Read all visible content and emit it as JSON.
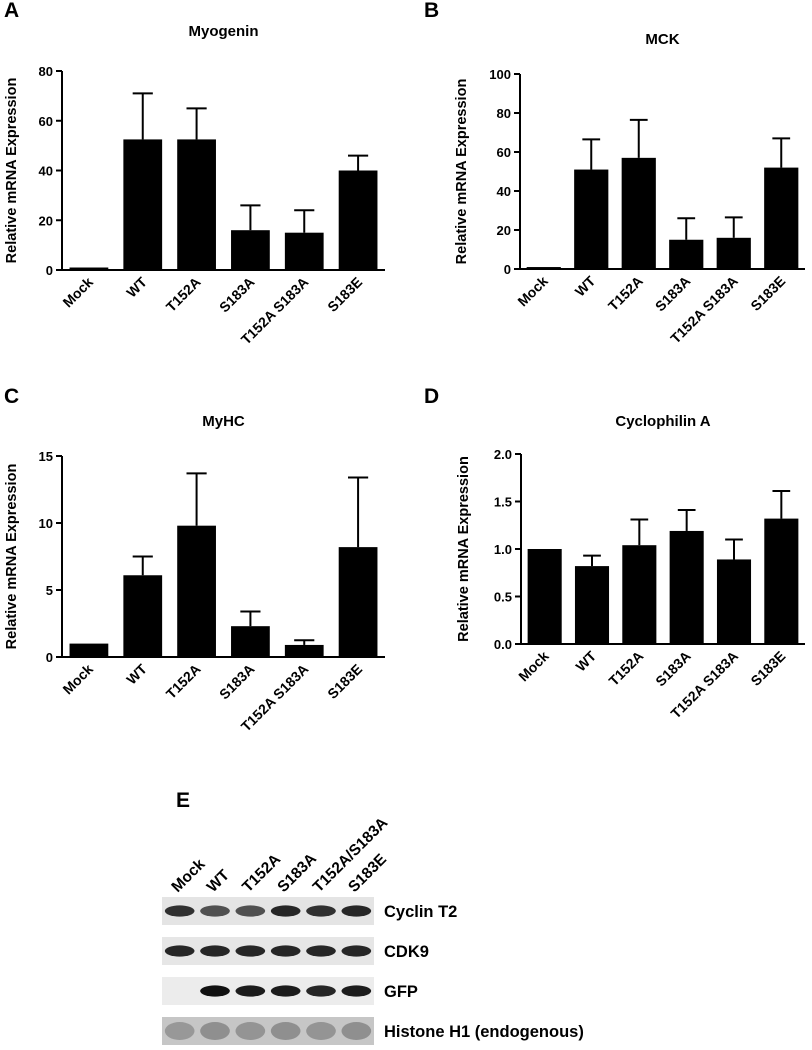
{
  "panel_labels": {
    "a": "A",
    "b": "B",
    "c": "C",
    "d": "D",
    "e": "E"
  },
  "chart_data": [
    {
      "panel": "A",
      "type": "bar",
      "title": "Myogenin",
      "ylabel": "Relative mRNA Expression",
      "xlabel": "",
      "categories": [
        "Mock",
        "WT",
        "T152A",
        "S183A",
        "T152A S183A",
        "S183E"
      ],
      "values": [
        1,
        52.5,
        52.5,
        16,
        15,
        40
      ],
      "errors": [
        0,
        18.5,
        12.5,
        10,
        9,
        6
      ],
      "ylim": [
        0,
        80
      ],
      "yticks": [
        "0",
        "20",
        "40",
        "60",
        "80"
      ],
      "grid": false
    },
    {
      "panel": "B",
      "type": "bar",
      "title": "MCK",
      "ylabel": "Relative mRNA Expression",
      "xlabel": "",
      "categories": [
        "Mock",
        "WT",
        "T152A",
        "S183A",
        "T152A S183A",
        "S183E"
      ],
      "values": [
        1,
        51,
        57,
        15,
        16,
        52
      ],
      "errors": [
        0,
        15.5,
        19.5,
        11,
        10.5,
        15
      ],
      "ylim": [
        0,
        100
      ],
      "yticks": [
        "0",
        "20",
        "40",
        "60",
        "80",
        "100"
      ],
      "grid": false
    },
    {
      "panel": "C",
      "type": "bar",
      "title": "MyHC",
      "ylabel": "Relative mRNA Expression",
      "xlabel": "",
      "categories": [
        "Mock",
        "WT",
        "T152A",
        "S183A",
        "T152A S183A",
        "S183E"
      ],
      "values": [
        1,
        6.1,
        9.8,
        2.3,
        0.9,
        8.2
      ],
      "errors": [
        0,
        1.4,
        3.9,
        1.1,
        0.35,
        5.2
      ],
      "ylim": [
        0,
        15
      ],
      "yticks": [
        "0",
        "5",
        "10",
        "15"
      ],
      "grid": false
    },
    {
      "panel": "D",
      "type": "bar",
      "title": "Cyclophilin A",
      "ylabel": "Relative mRNA Expression",
      "xlabel": "",
      "categories": [
        "Mock",
        "WT",
        "T152A",
        "S183A",
        "T152A S183A",
        "S183E"
      ],
      "values": [
        1.0,
        0.82,
        1.04,
        1.19,
        0.89,
        1.32
      ],
      "errors": [
        0,
        0.11,
        0.27,
        0.22,
        0.21,
        0.29
      ],
      "ylim": [
        0,
        2.0
      ],
      "yticks": [
        "0.0",
        "0.5",
        "1.0",
        "1.5",
        "2.0"
      ],
      "grid": false
    }
  ],
  "blot": {
    "lanes": [
      "Mock",
      "WT",
      "T152A",
      "S183A",
      "T152A/S183A",
      "S183E"
    ],
    "rows": [
      {
        "label": "Cyclin T2",
        "intensity": [
          0.85,
          0.7,
          0.7,
          0.9,
          0.85,
          0.9
        ],
        "background": "#e4e4e4"
      },
      {
        "label": "CDK9",
        "intensity": [
          0.9,
          0.9,
          0.9,
          0.9,
          0.9,
          0.9
        ],
        "background": "#e6e6e6"
      },
      {
        "label": "GFP",
        "intensity": [
          0.0,
          1.0,
          0.95,
          0.95,
          0.9,
          0.95
        ],
        "background": "#ececec"
      },
      {
        "label": "Histone H1 (endogenous)",
        "intensity": [
          0.25,
          0.3,
          0.28,
          0.3,
          0.28,
          0.3
        ],
        "background": "#c6c6c6"
      }
    ]
  },
  "colors": {
    "bar": "#000000",
    "axis": "#000000",
    "band": "#111111"
  }
}
